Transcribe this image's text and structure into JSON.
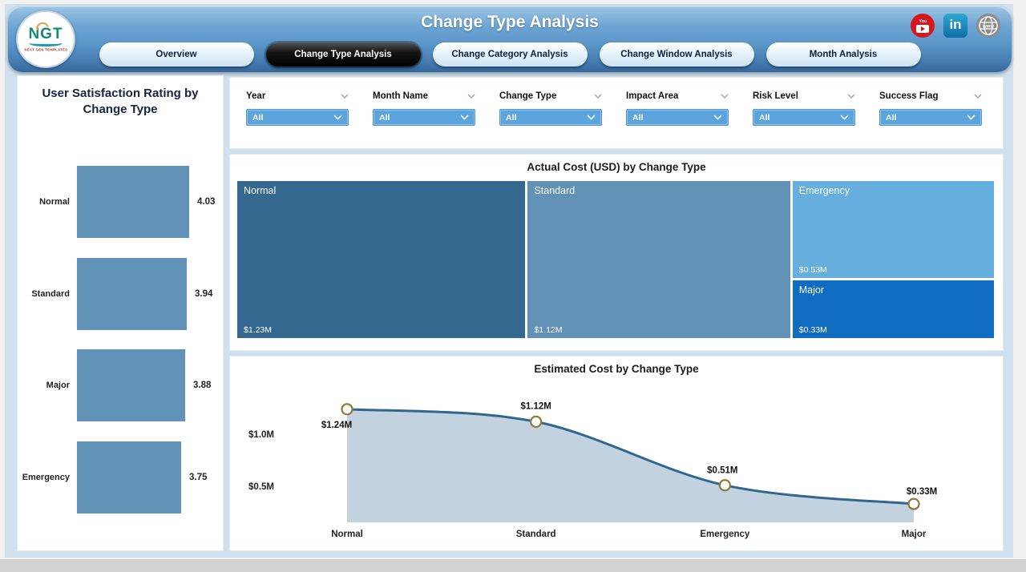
{
  "colors": {
    "page_bg": "#cfe1ee",
    "slicer_blue": "#5ba4de",
    "bar_color": "#6192b8",
    "active_tab_bg": "#000000",
    "header_top": "#9cc4e4",
    "header_bottom": "#35689c"
  },
  "header": {
    "title": "Change Type Analysis",
    "logo": {
      "text": "NGT",
      "subtext": "NEXT GEN TEMPLATES"
    },
    "social": [
      {
        "icon": "youtube-icon",
        "glyph": "You Tube"
      },
      {
        "icon": "linkedin-icon",
        "glyph": "in"
      },
      {
        "icon": "globe-icon",
        "glyph": "www"
      }
    ],
    "tabs": [
      {
        "label": "Overview",
        "active": false
      },
      {
        "label": "Change Type Analysis",
        "active": true
      },
      {
        "label": "Change Category Analysis",
        "active": false
      },
      {
        "label": "Change Window Analysis",
        "active": false
      },
      {
        "label": "Month Analysis",
        "active": false
      }
    ]
  },
  "filters": [
    {
      "label": "Year",
      "value": "All"
    },
    {
      "label": "Month Name",
      "value": "All"
    },
    {
      "label": "Change Type",
      "value": "All"
    },
    {
      "label": "Impact Area",
      "value": "All"
    },
    {
      "label": "Risk Level",
      "value": "All"
    },
    {
      "label": "Success Flag",
      "value": "All"
    }
  ],
  "chart_data": [
    {
      "type": "bar",
      "orientation": "horizontal",
      "title": "User Satisfaction Rating by Change Type",
      "categories": [
        "Normal",
        "Standard",
        "Major",
        "Emergency"
      ],
      "values": [
        4.03,
        3.94,
        3.88,
        3.75
      ],
      "value_labels": [
        "4.03",
        "3.94",
        "3.88",
        "3.75"
      ],
      "xlim": [
        0,
        4.03
      ],
      "bar_color": "#6192b8"
    },
    {
      "type": "treemap",
      "title": "Actual Cost (USD) by Change Type",
      "items": [
        {
          "label": "Normal",
          "value": 1.23,
          "value_label": "$1.23M",
          "color": "#35688f"
        },
        {
          "label": "Standard",
          "value": 1.12,
          "value_label": "$1.12M",
          "color": "#6191b5"
        },
        {
          "label": "Emergency",
          "value": 0.53,
          "value_label": "$0.53M",
          "color": "#66aede"
        },
        {
          "label": "Major",
          "value": 0.33,
          "value_label": "$0.33M",
          "color": "#0f6cc0"
        }
      ]
    },
    {
      "type": "area",
      "title": "Estimated Cost by Change Type",
      "categories": [
        "Normal",
        "Standard",
        "Emergency",
        "Major"
      ],
      "values": [
        1.24,
        1.12,
        0.51,
        0.33
      ],
      "value_labels": [
        "$1.24M",
        "$1.12M",
        "$0.51M",
        "$0.33M"
      ],
      "yticks": [
        1.0,
        0.5
      ],
      "ytick_labels": [
        "$1.0M",
        "$0.5M"
      ],
      "ylim": [
        0.15,
        1.45
      ],
      "line_color": "#31678f",
      "fill_color": "#c3d2df",
      "marker_fill": "#ffffff",
      "marker_ring": "#8a7a38",
      "legend": "off",
      "grid": "off"
    }
  ]
}
